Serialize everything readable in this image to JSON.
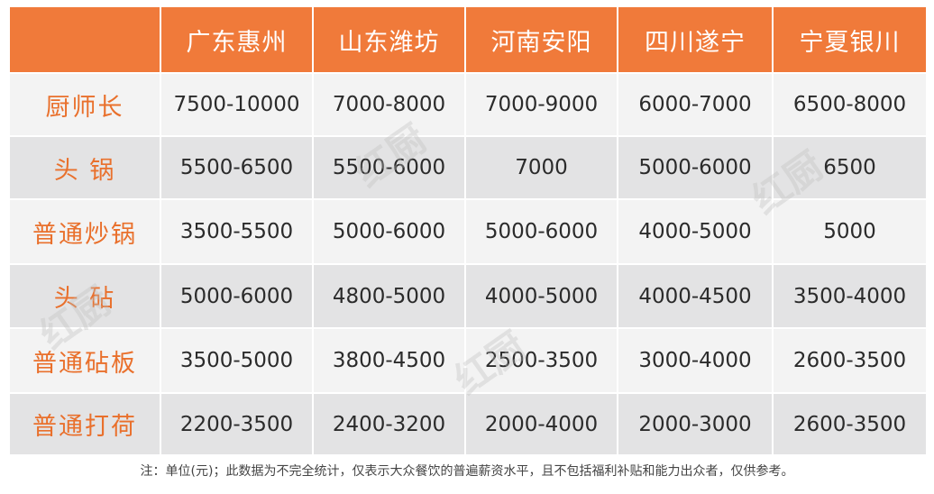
{
  "table": {
    "corner": "",
    "columns": [
      "广东惠州",
      "山东潍坊",
      "河南安阳",
      "四川遂宁",
      "宁夏银川"
    ],
    "rows": [
      {
        "label": "厨师长",
        "values": [
          "7500-10000",
          "7000-8000",
          "7000-9000",
          "6000-7000",
          "6500-8000"
        ]
      },
      {
        "label": "头 锅",
        "values": [
          "5500-6500",
          "5500-6000",
          "7000",
          "5000-6000",
          "6500"
        ]
      },
      {
        "label": "普通炒锅",
        "values": [
          "3500-5500",
          "5000-6000",
          "5000-6000",
          "4000-5000",
          "5000"
        ]
      },
      {
        "label": "头 砧",
        "values": [
          "5000-6000",
          "4800-5000",
          "4000-5000",
          "4000-4500",
          "3500-4000"
        ]
      },
      {
        "label": "普通砧板",
        "values": [
          "3500-5000",
          "3800-4500",
          "2500-3500",
          "3000-4000",
          "2600-3500"
        ]
      },
      {
        "label": "普通打荷",
        "values": [
          "2200-3500",
          "2400-3200",
          "2000-4000",
          "2000-3000",
          "2600-3500"
        ]
      }
    ]
  },
  "note": "注：单位(元)；此数据为不完全统计，仅表示大众餐饮的普遍薪资水平，且不包括福利补贴和能力出众者，仅供参考。",
  "watermark": "红厨",
  "colors": {
    "header": "#f07a3a",
    "label": "#e9702c",
    "row_light": "#f3f3f3",
    "row_dark": "#e3e3e4"
  }
}
